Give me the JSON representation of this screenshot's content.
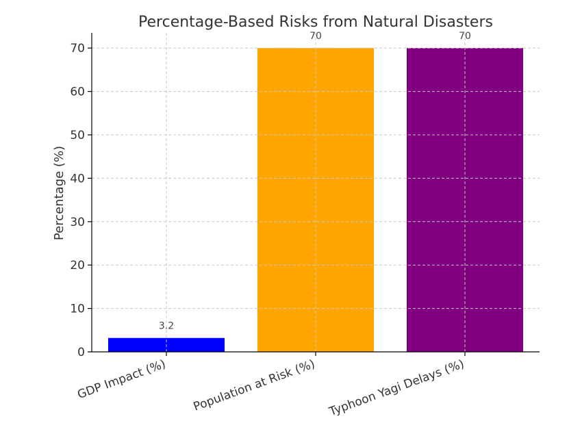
{
  "chart_data": {
    "type": "bar",
    "title": "Percentage-Based Risks from Natural Disasters",
    "xlabel": "",
    "ylabel": "Percentage (%)",
    "categories": [
      "GDP Impact (%)",
      "Population at Risk (%)",
      "Typhoon Yagi Delays (%)"
    ],
    "values": [
      3.2,
      70,
      70
    ],
    "data_labels": [
      "3.2",
      "70",
      "70"
    ],
    "colors": [
      "#0000ff",
      "#ffa500",
      "#800080"
    ],
    "ylim": [
      0,
      73.5
    ],
    "yticks": [
      0,
      10,
      20,
      30,
      40,
      50,
      60,
      70
    ],
    "ytick_labels": [
      "0",
      "10",
      "20",
      "30",
      "40",
      "50",
      "60",
      "70"
    ],
    "grid": true
  }
}
